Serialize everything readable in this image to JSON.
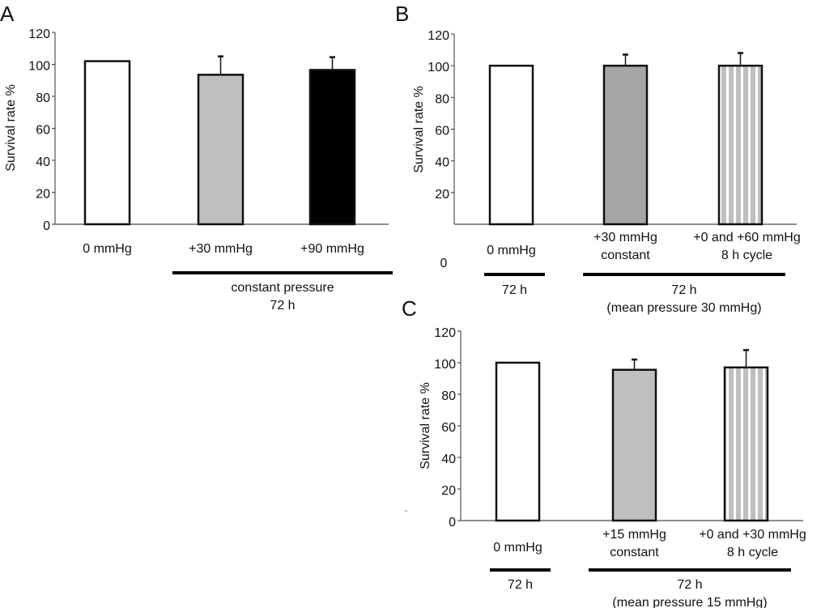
{
  "chart_data": [
    {
      "panel": "A",
      "type": "bar",
      "ylabel": "Survival rate %",
      "ylim": [
        0,
        120
      ],
      "yticks": [
        "0",
        "20",
        "40",
        "60",
        "80",
        "100",
        "120"
      ],
      "categories": [
        "0 mmHg",
        "+30 mmHg",
        "+90 mmHg"
      ],
      "values": [
        102,
        93.5,
        96.5
      ],
      "error_upper": [
        null,
        105,
        104.5
      ],
      "fills": [
        "#ffffff",
        "#bfbfbf",
        "#000000"
      ],
      "patterns": [
        "solid",
        "solid",
        "solid"
      ],
      "groups": [
        {
          "label_lines": [
            "constant pressure",
            "72 h"
          ],
          "spans": [
            1,
            2
          ]
        }
      ]
    },
    {
      "panel": "B",
      "type": "bar",
      "ylabel": "Survival rate %",
      "ylim": [
        0,
        120
      ],
      "yticks": [
        "20",
        "40",
        "60",
        "80",
        "100",
        "120"
      ],
      "extra_zero_label": "0",
      "categories": [
        "0 mmHg",
        "+30 mmHg constant",
        "+0 and +60 mmHg 8 h cycle"
      ],
      "category_lines": [
        [
          "0 mmHg"
        ],
        [
          "+30 mmHg",
          "constant"
        ],
        [
          "+0 and +60 mmHg",
          "8 h cycle"
        ]
      ],
      "values": [
        100,
        100,
        100
      ],
      "error_upper": [
        null,
        107,
        108
      ],
      "fills": [
        "#ffffff",
        "#a6a6a6",
        "#bfbfbf"
      ],
      "patterns": [
        "solid",
        "solid",
        "stripes"
      ],
      "groups": [
        {
          "label_lines": [
            "72 h"
          ],
          "spans": [
            0,
            0
          ]
        },
        {
          "label_lines": [
            "72 h",
            "(mean pressure 30 mmHg)"
          ],
          "spans": [
            1,
            2
          ]
        }
      ]
    },
    {
      "panel": "C",
      "type": "bar",
      "ylabel": "Survival rate %",
      "ylim": [
        0,
        120
      ],
      "yticks": [
        "0",
        "20",
        "40",
        "60",
        "80",
        "100",
        "120"
      ],
      "categories": [
        "0 mmHg",
        "+15 mmHg constant",
        "+0 and +30 mmHg 8 h cycle"
      ],
      "category_lines": [
        [
          "0 mmHg"
        ],
        [
          "+15 mmHg",
          "constant"
        ],
        [
          "+0 and +30 mmHg",
          "8 h cycle"
        ]
      ],
      "values": [
        100,
        95.5,
        97
      ],
      "error_upper": [
        null,
        102,
        108
      ],
      "fills": [
        "#ffffff",
        "#bfbfbf",
        "#bfbfbf"
      ],
      "patterns": [
        "solid",
        "solid",
        "stripes"
      ],
      "groups": [
        {
          "label_lines": [
            "72 h"
          ],
          "spans": [
            0,
            0
          ]
        },
        {
          "label_lines": [
            "72 h",
            "(mean pressure 15 mmHg)"
          ],
          "spans": [
            1,
            2
          ]
        }
      ]
    }
  ]
}
